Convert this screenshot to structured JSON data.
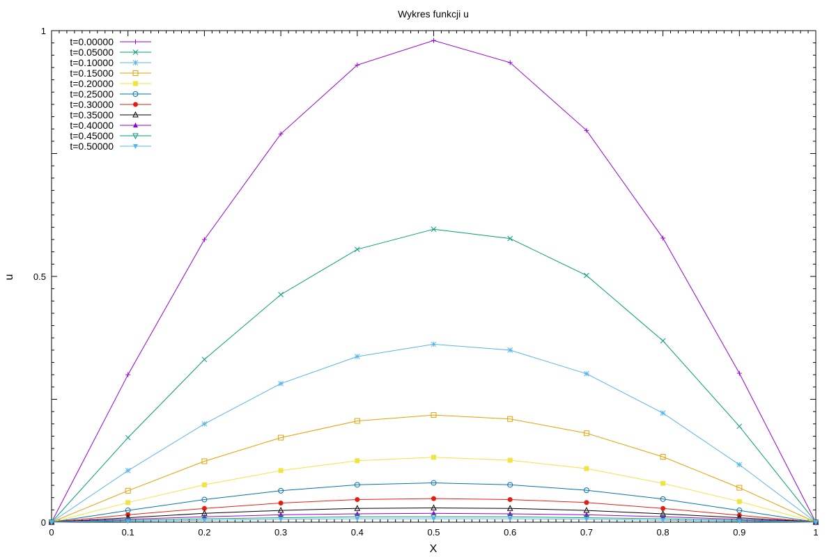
{
  "chart_data": {
    "type": "line",
    "title": "Wykres funkcji u",
    "xlabel": "X",
    "ylabel": "u",
    "xlim": [
      0,
      1
    ],
    "ylim": [
      0,
      1
    ],
    "x_ticks": [
      "0",
      "0.1",
      "0.2",
      "0.3",
      "0.4",
      "0.5",
      "0.6",
      "0.7",
      "0.8",
      "0.9",
      "1"
    ],
    "y_ticks": [
      "0",
      "0.5",
      "1"
    ],
    "grid": false,
    "legend_position": "top-left",
    "x": [
      0,
      0.1,
      0.2,
      0.3,
      0.4,
      0.5,
      0.6,
      0.7,
      0.8,
      0.9,
      1
    ],
    "series": [
      {
        "name": "t=0.00000",
        "color": "#9400d3",
        "marker": "plus",
        "values": [
          0,
          0.3,
          0.575,
          0.79,
          0.93,
          0.98,
          0.935,
          0.797,
          0.578,
          0.303,
          0
        ]
      },
      {
        "name": "t=0.05000",
        "color": "#009e73",
        "marker": "cross",
        "values": [
          0,
          0.172,
          0.331,
          0.463,
          0.555,
          0.596,
          0.577,
          0.502,
          0.369,
          0.195,
          0
        ]
      },
      {
        "name": "t=0.10000",
        "color": "#56b4e9",
        "marker": "star",
        "values": [
          0,
          0.105,
          0.2,
          0.282,
          0.337,
          0.362,
          0.35,
          0.302,
          0.222,
          0.117,
          0
        ]
      },
      {
        "name": "t=0.15000",
        "color": "#e69f00",
        "marker": "box",
        "values": [
          0,
          0.064,
          0.124,
          0.172,
          0.206,
          0.218,
          0.21,
          0.181,
          0.133,
          0.07,
          0
        ]
      },
      {
        "name": "t=0.20000",
        "color": "#f0e442",
        "marker": "filled-box",
        "values": [
          0,
          0.04,
          0.076,
          0.105,
          0.125,
          0.132,
          0.126,
          0.109,
          0.079,
          0.042,
          0
        ]
      },
      {
        "name": "t=0.25000",
        "color": "#0072b2",
        "marker": "circle",
        "values": [
          0,
          0.024,
          0.046,
          0.064,
          0.076,
          0.08,
          0.076,
          0.065,
          0.047,
          0.024,
          0
        ]
      },
      {
        "name": "t=0.30000",
        "color": "#e51e10",
        "marker": "filled-circle",
        "values": [
          0,
          0.015,
          0.028,
          0.039,
          0.046,
          0.048,
          0.046,
          0.04,
          0.028,
          0.014,
          0
        ]
      },
      {
        "name": "t=0.35000",
        "color": "#000000",
        "marker": "triangle",
        "values": [
          0,
          0.009,
          0.018,
          0.024,
          0.028,
          0.029,
          0.028,
          0.024,
          0.017,
          0.009,
          0
        ]
      },
      {
        "name": "t=0.40000",
        "color": "#9400d3",
        "marker": "filled-triangle",
        "values": [
          0,
          0.006,
          0.011,
          0.015,
          0.017,
          0.018,
          0.017,
          0.015,
          0.011,
          0.006,
          0
        ]
      },
      {
        "name": "t=0.45000",
        "color": "#009e73",
        "marker": "inverted-triangle",
        "values": [
          0,
          0.004,
          0.007,
          0.009,
          0.011,
          0.011,
          0.011,
          0.009,
          0.007,
          0.004,
          0
        ]
      },
      {
        "name": "t=0.50000",
        "color": "#56b4e9",
        "marker": "filled-inverted-triangle",
        "values": [
          0,
          0.002,
          0.004,
          0.006,
          0.007,
          0.007,
          0.007,
          0.006,
          0.004,
          0.002,
          0
        ]
      }
    ]
  }
}
